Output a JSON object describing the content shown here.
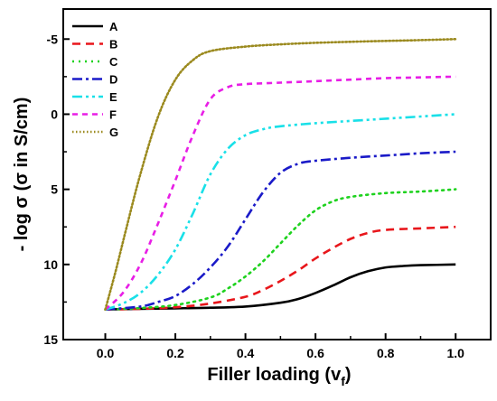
{
  "chart_data": {
    "type": "line",
    "xlabel": "Filler loading (v",
    "xlabel_subscript": "f",
    "xlabel_close": ")",
    "ylabel": "- log σ (σ in S/cm)",
    "xlim": [
      -0.12,
      1.1
    ],
    "ylim": [
      15,
      -7
    ],
    "y_inverted": true,
    "x_ticks": [
      0.0,
      0.2,
      0.4,
      0.6,
      0.8,
      1.0
    ],
    "x_tick_labels": [
      "0.0",
      "0.2",
      "0.4",
      "0.6",
      "0.8",
      "1.0"
    ],
    "y_ticks": [
      -5,
      0,
      5,
      10,
      15
    ],
    "y_tick_labels": [
      "-5",
      "0",
      "5",
      "10",
      "15"
    ],
    "legend_position": "top-left",
    "grid": false,
    "series": [
      {
        "name": "A",
        "color": "#000000",
        "dash": "solid",
        "x": [
          0.0,
          0.1,
          0.2,
          0.3,
          0.4,
          0.5,
          0.55,
          0.6,
          0.65,
          0.7,
          0.75,
          0.8,
          0.85,
          0.9,
          1.0
        ],
        "y": [
          13.0,
          12.95,
          12.92,
          12.88,
          12.8,
          12.55,
          12.3,
          11.9,
          11.4,
          10.85,
          10.45,
          10.2,
          10.1,
          10.05,
          10.0
        ]
      },
      {
        "name": "B",
        "color": "#e8161b",
        "dash": "dashed",
        "x": [
          0.0,
          0.1,
          0.2,
          0.3,
          0.4,
          0.45,
          0.5,
          0.55,
          0.6,
          0.65,
          0.7,
          0.75,
          0.8,
          0.9,
          1.0
        ],
        "y": [
          13.0,
          12.95,
          12.85,
          12.6,
          12.15,
          11.7,
          11.1,
          10.4,
          9.6,
          8.9,
          8.3,
          7.9,
          7.7,
          7.6,
          7.5
        ]
      },
      {
        "name": "C",
        "color": "#1ed21e",
        "dash": "dotted",
        "x": [
          0.0,
          0.1,
          0.2,
          0.3,
          0.35,
          0.4,
          0.45,
          0.5,
          0.55,
          0.6,
          0.65,
          0.7,
          0.8,
          0.9,
          1.0
        ],
        "y": [
          13.0,
          12.9,
          12.7,
          12.2,
          11.6,
          10.8,
          9.8,
          8.6,
          7.4,
          6.4,
          5.8,
          5.5,
          5.25,
          5.15,
          5.0
        ]
      },
      {
        "name": "D",
        "color": "#1a1ac8",
        "dash": "dashdot",
        "x": [
          0.0,
          0.1,
          0.15,
          0.2,
          0.25,
          0.3,
          0.35,
          0.4,
          0.45,
          0.5,
          0.55,
          0.6,
          0.7,
          0.8,
          0.9,
          1.0
        ],
        "y": [
          13.0,
          12.8,
          12.5,
          12.1,
          11.3,
          10.2,
          8.8,
          7.0,
          5.2,
          3.9,
          3.3,
          3.1,
          2.9,
          2.75,
          2.6,
          2.5
        ]
      },
      {
        "name": "E",
        "color": "#19e0e8",
        "dash": "dashdotdot",
        "x": [
          0.0,
          0.05,
          0.1,
          0.15,
          0.2,
          0.25,
          0.3,
          0.35,
          0.4,
          0.45,
          0.5,
          0.6,
          0.7,
          0.8,
          0.9,
          1.0
        ],
        "y": [
          13.0,
          12.6,
          11.9,
          10.7,
          9.0,
          6.6,
          4.0,
          2.3,
          1.4,
          1.0,
          0.8,
          0.6,
          0.45,
          0.3,
          0.15,
          0.0
        ]
      },
      {
        "name": "F",
        "color": "#e81ee6",
        "dash": "dashed-short",
        "x": [
          0.0,
          0.05,
          0.1,
          0.15,
          0.2,
          0.25,
          0.3,
          0.35,
          0.4,
          0.5,
          0.6,
          0.7,
          0.8,
          0.9,
          1.0
        ],
        "y": [
          13.0,
          11.9,
          10.0,
          7.3,
          4.4,
          1.4,
          -1.0,
          -1.8,
          -2.0,
          -2.1,
          -2.2,
          -2.3,
          -2.4,
          -2.45,
          -2.5
        ]
      },
      {
        "name": "G",
        "color": "#9b8a1f",
        "dash": "dotted-fine",
        "x": [
          0.0,
          0.03,
          0.06,
          0.1,
          0.15,
          0.2,
          0.25,
          0.3,
          0.4,
          0.5,
          0.6,
          0.7,
          0.8,
          0.9,
          1.0
        ],
        "y": [
          13.0,
          10.4,
          7.6,
          4.0,
          0.2,
          -2.3,
          -3.6,
          -4.2,
          -4.5,
          -4.65,
          -4.75,
          -4.82,
          -4.88,
          -4.93,
          -5.0
        ]
      }
    ]
  }
}
